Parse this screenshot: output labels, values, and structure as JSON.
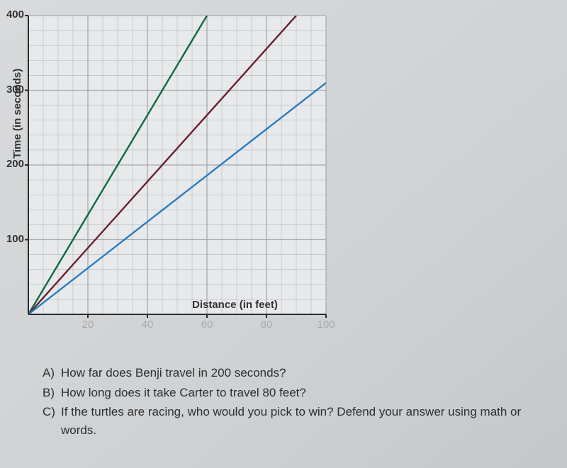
{
  "chart": {
    "type": "line",
    "background_color": "#d2d4d6",
    "plot_background": "#e8e9eb",
    "grid_color": "#9aa0a6",
    "axis_color": "#2b2b2b",
    "line_width_grid_minor": 0.7,
    "line_width_grid_major": 1.3,
    "line_width_series": 2.4,
    "xlim": [
      0,
      100
    ],
    "ylim": [
      0,
      400
    ],
    "x_major_step": 20,
    "y_major_step": 100,
    "x_minor_step": 5,
    "y_minor_step": 20,
    "xticks": [
      20,
      40,
      60,
      80,
      100
    ],
    "yticks": [
      100,
      200,
      300,
      400
    ],
    "xlabel": "Distance (in feet)",
    "ylabel": "Time (in seconds)",
    "label_fontsize": 15,
    "tick_fontsize": 15,
    "series": [
      {
        "name": "green-line",
        "color": "#0f6b3f",
        "points": [
          [
            0,
            0
          ],
          [
            60,
            400
          ]
        ]
      },
      {
        "name": "maroon-line",
        "color": "#6b1f2f",
        "points": [
          [
            0,
            0
          ],
          [
            90,
            400
          ]
        ]
      },
      {
        "name": "blue-line",
        "color": "#2b7ec2",
        "points": [
          [
            0,
            0
          ],
          [
            100,
            310
          ]
        ]
      }
    ]
  },
  "questions": {
    "a_letter": "A)",
    "a_text": "How far does Benji travel in 200 seconds?",
    "b_letter": "B)",
    "b_text": "How long does it take Carter to travel 80 feet?",
    "c_letter": "C)",
    "c_text": "If the turtles are racing, who would you pick to win? Defend your answer using math or words."
  }
}
